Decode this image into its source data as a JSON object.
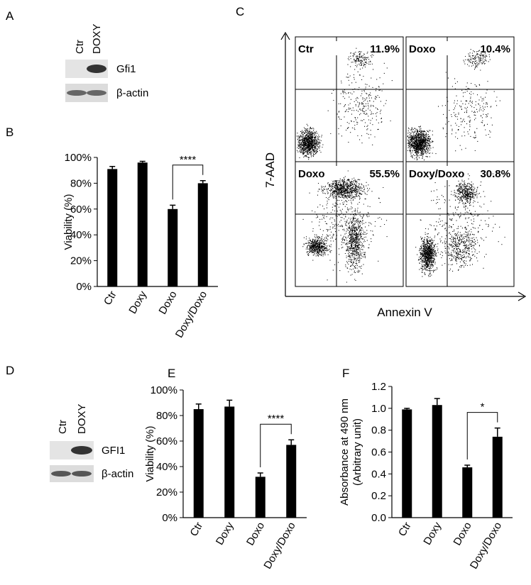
{
  "panels": {
    "A": {
      "letter": "A",
      "lanes": [
        "Ctr",
        "DOXY"
      ],
      "bands": [
        "Gfi1",
        "β-actin"
      ]
    },
    "B": {
      "letter": "B"
    },
    "C": {
      "letter": "C",
      "ylabel": "7-AAD",
      "xlabel": "Annexin V",
      "plots": [
        {
          "name": "Ctr",
          "percent": "11.9%"
        },
        {
          "name": "Doxo",
          "percent": "10.4%"
        },
        {
          "name": "Doxo",
          "percent": "55.5%"
        },
        {
          "name": "Doxy/Doxo",
          "percent": "30.8%"
        }
      ]
    },
    "D": {
      "letter": "D",
      "lanes": [
        "Ctr",
        "DOXY"
      ],
      "bands": [
        "GFI1",
        "β-actin"
      ]
    },
    "E": {
      "letter": "E"
    },
    "F": {
      "letter": "F"
    }
  },
  "chart_data": [
    {
      "type": "bar",
      "ylabel": [
        "Viability (%)"
      ],
      "categories": [
        "Ctr",
        "Doxy",
        "Doxo",
        "Doxy/Doxo"
      ],
      "values": [
        91,
        96,
        60,
        80
      ],
      "errors": [
        2,
        1,
        3,
        2
      ],
      "color": "#000000",
      "ylim": [
        0,
        100
      ],
      "yticks": [
        {
          "value": 0,
          "label": "0%"
        },
        {
          "value": 20,
          "label": "20%"
        },
        {
          "value": 40,
          "label": "40%"
        },
        {
          "value": 60,
          "label": "60%"
        },
        {
          "value": 80,
          "label": "80%"
        },
        {
          "value": 100,
          "label": "100%"
        }
      ],
      "annotation": "****"
    },
    {
      "type": "bar",
      "ylabel": [
        "Viability (%)"
      ],
      "categories": [
        "Ctr",
        "Doxy",
        "Doxo",
        "Doxy/Doxo"
      ],
      "values": [
        85,
        87,
        32,
        57
      ],
      "errors": [
        4,
        5,
        3,
        4
      ],
      "color": "#000000",
      "ylim": [
        0,
        100
      ],
      "yticks": [
        {
          "value": 0,
          "label": "0%"
        },
        {
          "value": 20,
          "label": "20%"
        },
        {
          "value": 40,
          "label": "40%"
        },
        {
          "value": 60,
          "label": "60%"
        },
        {
          "value": 80,
          "label": "80%"
        },
        {
          "value": 100,
          "label": "100%"
        }
      ],
      "annotation": "****"
    },
    {
      "type": "bar",
      "ylabel": [
        "Absorbance at 490 nm",
        "(Arbitrary unit)"
      ],
      "categories": [
        "Ctr",
        "Doxy",
        "Doxo",
        "Doxy/Doxo"
      ],
      "values": [
        0.99,
        1.03,
        0.46,
        0.74
      ],
      "errors": [
        0.01,
        0.06,
        0.02,
        0.08
      ],
      "color": "#000000",
      "ylim": [
        0,
        1.2
      ],
      "yticks": [
        {
          "value": 0,
          "label": "0.0"
        },
        0.2,
        0.4,
        0.6,
        0.8,
        {
          "value": 1,
          "label": "1.0"
        },
        1.2
      ],
      "annotation": "*"
    }
  ]
}
